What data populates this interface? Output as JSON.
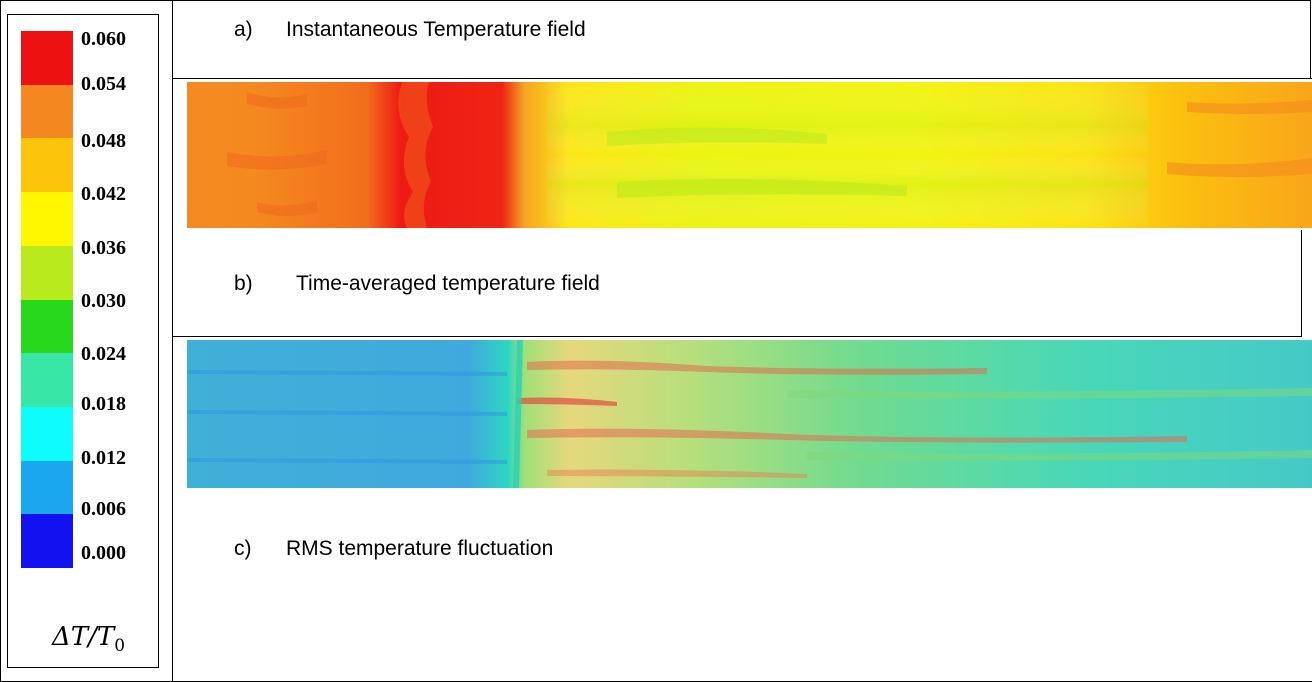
{
  "colorbar": {
    "title": "ΔT/T",
    "title_sub": "0",
    "ticks": [
      "0.060",
      "0.054",
      "0.048",
      "0.042",
      "0.036",
      "0.030",
      "0.024",
      "0.018",
      "0.012",
      "0.006",
      "0.000"
    ],
    "colors": [
      "#ee1111",
      "#f4871f",
      "#fcc40a",
      "#fff700",
      "#b8ea1e",
      "#27d71c",
      "#38e6a8",
      "#0dfcfc",
      "#1ba6f0",
      "#1212f0"
    ]
  },
  "panels": [
    {
      "letter": "a)",
      "caption": "Instantaneous Temperature field"
    },
    {
      "letter": "b)",
      "caption": "Time-averaged temperature field"
    },
    {
      "letter": "c)",
      "caption": "RMS temperature fluctuation"
    }
  ]
}
